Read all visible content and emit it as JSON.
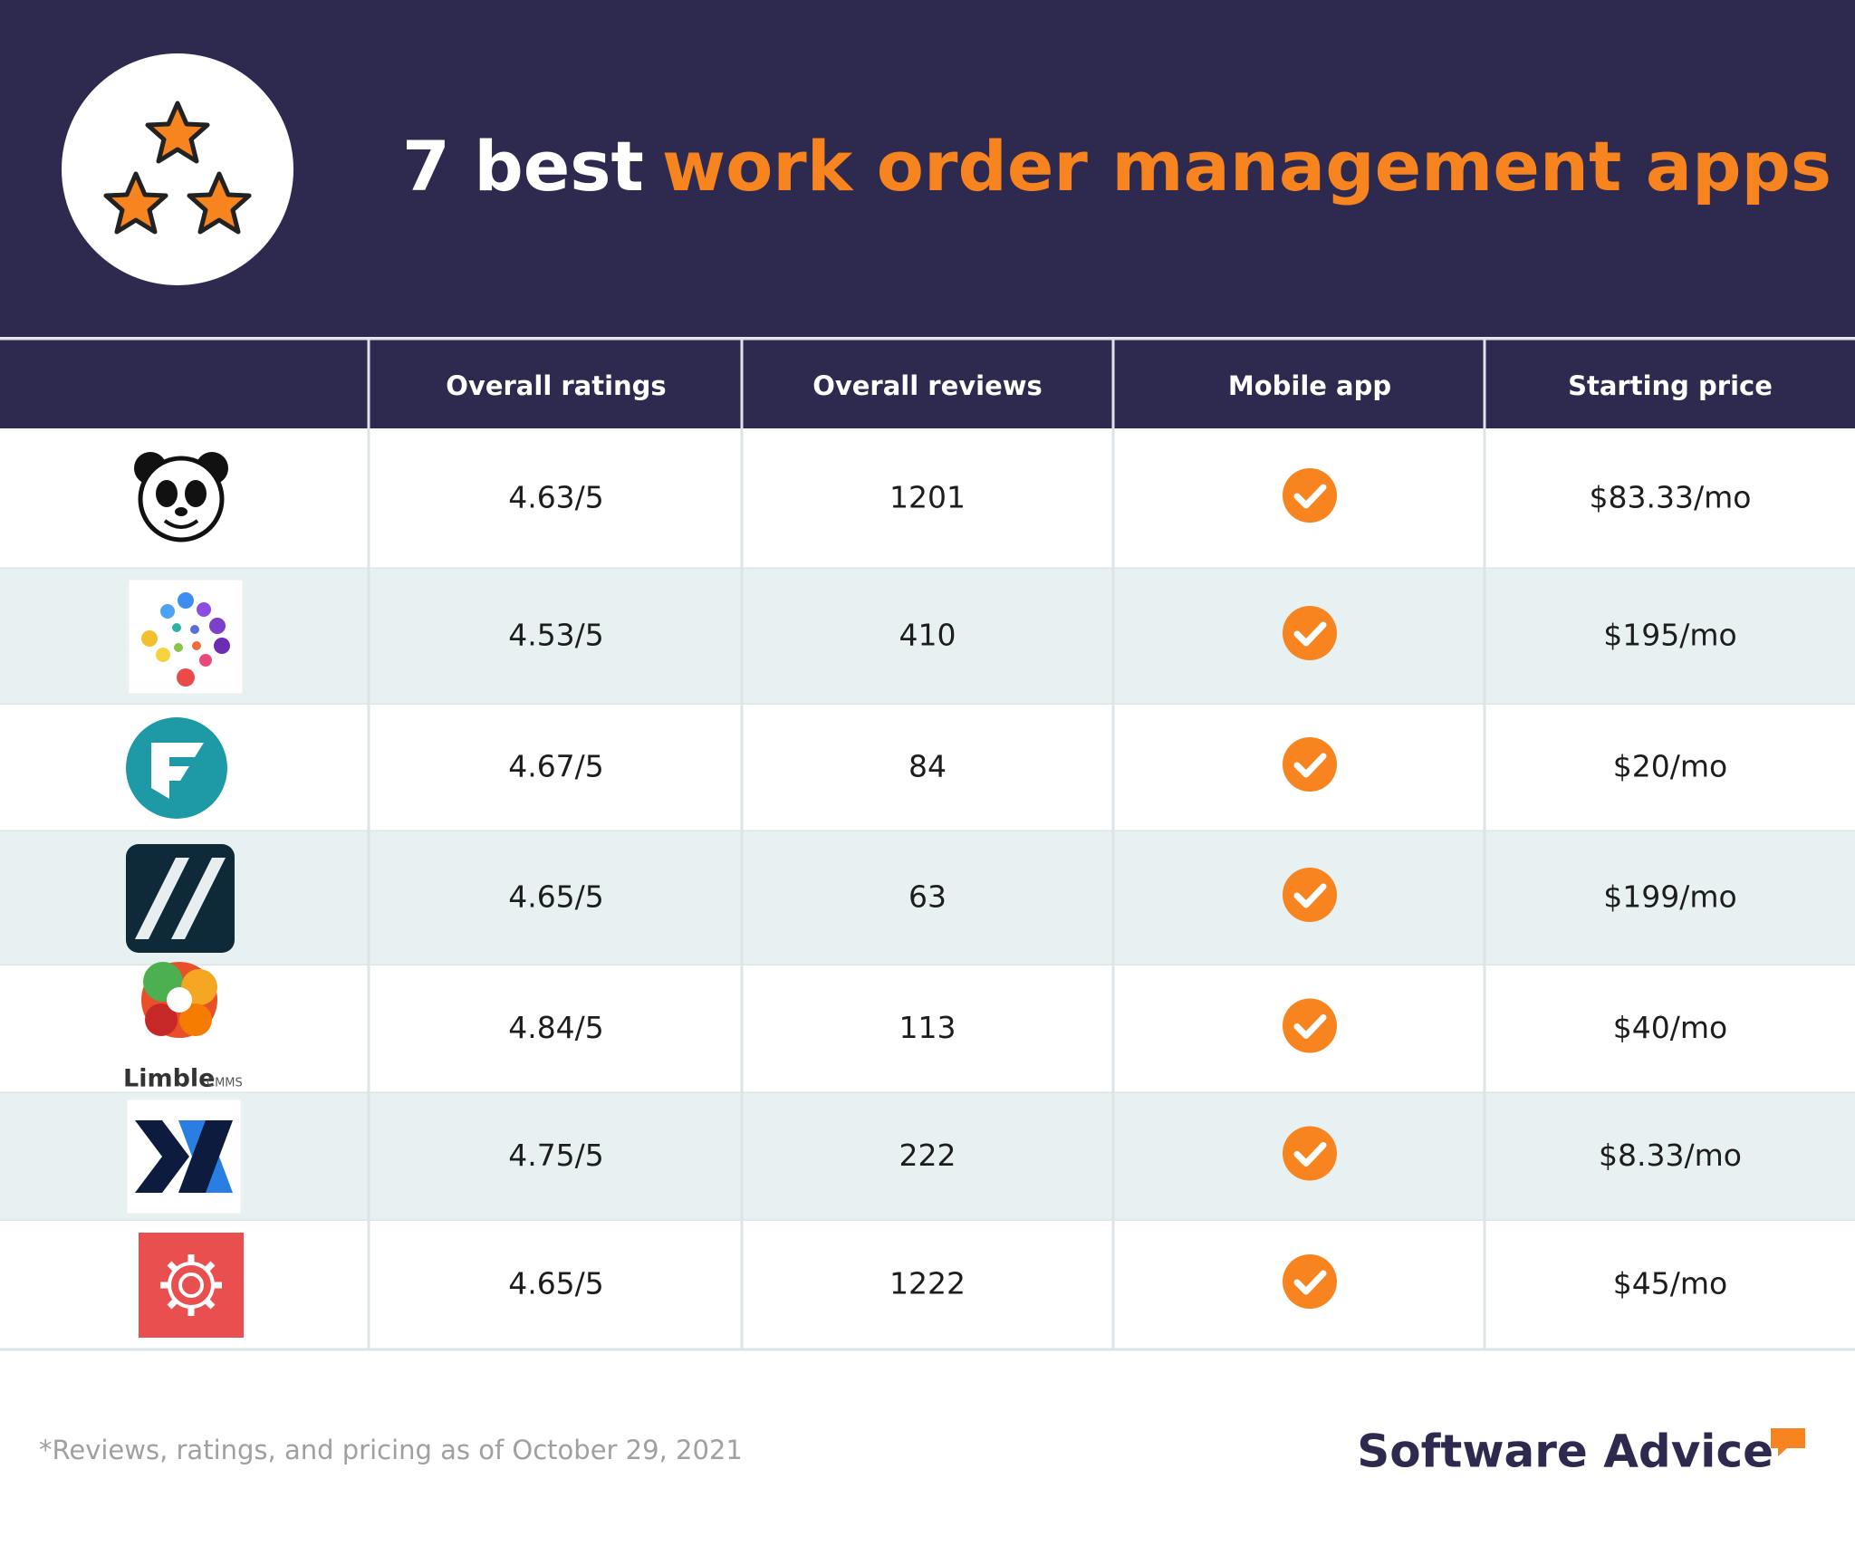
{
  "header": {
    "title_prefix": "7 best",
    "title_highlight": "work order management apps"
  },
  "table": {
    "columns": [
      "Overall ratings",
      "Overall reviews",
      "Mobile app",
      "Starting price"
    ],
    "rows": [
      [
        "4.63/5",
        "1201",
        "$83.33/mo"
      ],
      [
        "4.53/5",
        "410",
        "$195/mo"
      ],
      [
        "4.67/5",
        "84",
        "$20/mo"
      ],
      [
        "4.65/5",
        "63",
        "$199/mo"
      ],
      [
        "4.84/5",
        "113",
        "$40/mo"
      ],
      [
        "4.75/5",
        "222",
        "$8.33/mo"
      ],
      [
        "4.65/5",
        "1222",
        "$45/mo"
      ]
    ]
  },
  "logos": {
    "limble": "Limble",
    "limble_suffix": "CMMS"
  },
  "footer": {
    "note": "*Reviews, ratings, and pricing as of October 29, 2021",
    "brand": "Software Advice"
  }
}
